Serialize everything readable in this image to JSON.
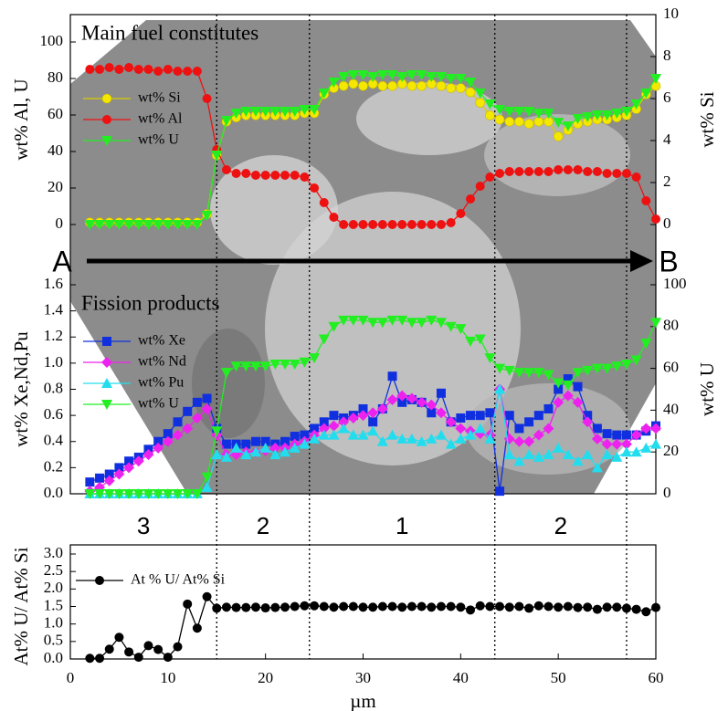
{
  "chart_data": [
    {
      "type": "line",
      "title": "Main fuel constitutes",
      "ylabel": "wt% Al, U",
      "y2label": "wt% Si",
      "x": [
        2,
        3,
        4,
        5,
        6,
        7,
        8,
        9,
        10,
        11,
        12,
        13,
        14,
        15,
        16,
        17,
        18,
        19,
        20,
        21,
        22,
        23,
        24,
        25,
        26,
        27,
        28,
        29,
        30,
        31,
        32,
        33,
        34,
        35,
        36,
        37,
        38,
        39,
        40,
        41,
        42,
        43,
        44,
        45,
        46,
        47,
        48,
        49,
        50,
        51,
        52,
        53,
        54,
        55,
        56,
        57,
        58,
        59,
        60
      ],
      "xlim": [
        0,
        60
      ],
      "ylim": [
        0,
        115
      ],
      "yticks": [
        0,
        20,
        40,
        60,
        80,
        100
      ],
      "y2lim": [
        0,
        10
      ],
      "y2ticks": [
        0,
        2,
        4,
        6,
        8,
        10
      ],
      "series": [
        {
          "name": "wt% Si",
          "color": "#f5e800",
          "marker": "circle",
          "axis": "y2",
          "values": [
            0.1,
            0.1,
            0.1,
            0.1,
            0.1,
            0.1,
            0.1,
            0.1,
            0.1,
            0.1,
            0.1,
            0.1,
            0.5,
            3.3,
            4.9,
            5.1,
            5.2,
            5.2,
            5.2,
            5.2,
            5.2,
            5.2,
            5.3,
            5.3,
            6.2,
            6.5,
            6.6,
            6.7,
            6.6,
            6.7,
            6.6,
            6.6,
            6.7,
            6.6,
            6.6,
            6.7,
            6.6,
            6.5,
            6.5,
            6.3,
            5.8,
            5.2,
            5.0,
            4.9,
            4.9,
            4.8,
            4.9,
            4.9,
            4.2,
            4.5,
            4.8,
            4.9,
            5.0,
            5.0,
            5.1,
            5.2,
            5.5,
            6.2,
            6.6
          ]
        },
        {
          "name": "wt% Al",
          "color": "#ee1111",
          "marker": "circle",
          "values": [
            85,
            85,
            86,
            85,
            86,
            85,
            85,
            84,
            85,
            84,
            84,
            84,
            69,
            41,
            30,
            28,
            28,
            27,
            27,
            27,
            27,
            27,
            26,
            20,
            12,
            4,
            0,
            0,
            0,
            0,
            0,
            0,
            0,
            0,
            0,
            0,
            0,
            1,
            6,
            14,
            21,
            26,
            28,
            29,
            29,
            29,
            29,
            29,
            30,
            30,
            30,
            29,
            29,
            28,
            28,
            28,
            26,
            13,
            3
          ]
        },
        {
          "name": "wt% U",
          "color": "#22ee22",
          "marker": "tri-down",
          "values": [
            0,
            0,
            0,
            0,
            0,
            0,
            0,
            0,
            0,
            0,
            0,
            0,
            5,
            38,
            57,
            61,
            62,
            62,
            62,
            62,
            62,
            62,
            63,
            63,
            72,
            78,
            81,
            82,
            82,
            81,
            82,
            82,
            81,
            82,
            82,
            81,
            81,
            80,
            80,
            78,
            72,
            66,
            63,
            62,
            62,
            62,
            61,
            61,
            56,
            54,
            58,
            59,
            60,
            60,
            61,
            62,
            66,
            72,
            80
          ]
        }
      ]
    },
    {
      "type": "line",
      "title": "Fission products",
      "ylabel": "wt% Xe,Nd,Pu",
      "y2label": "wt% U",
      "x": [
        2,
        3,
        4,
        5,
        6,
        7,
        8,
        9,
        10,
        11,
        12,
        13,
        14,
        15,
        16,
        17,
        18,
        19,
        20,
        21,
        22,
        23,
        24,
        25,
        26,
        27,
        28,
        29,
        30,
        31,
        32,
        33,
        34,
        35,
        36,
        37,
        38,
        39,
        40,
        41,
        42,
        43,
        44,
        45,
        46,
        47,
        48,
        49,
        50,
        51,
        52,
        53,
        54,
        55,
        56,
        57,
        58,
        59,
        60
      ],
      "xlim": [
        0,
        60
      ],
      "ylim": [
        0,
        1.6
      ],
      "yticks": [
        {
          "value": 0,
          "label": "0.0"
        },
        {
          "value": 0.2,
          "label": "0.2"
        },
        {
          "value": 0.4,
          "label": "0.4"
        },
        {
          "value": 0.6,
          "label": "0.6"
        },
        {
          "value": 0.8,
          "label": "0.8"
        },
        {
          "value": 1,
          "label": "1.0"
        },
        {
          "value": 1.2,
          "label": "1.2"
        },
        {
          "value": 1.4,
          "label": "1.4"
        },
        {
          "value": 1.6,
          "label": "1.6"
        }
      ],
      "y2lim": [
        0,
        100
      ],
      "y2ticks": [
        0,
        20,
        40,
        60,
        80,
        100
      ],
      "series": [
        {
          "name": "wt% Xe",
          "color": "#1030e0",
          "marker": "square",
          "values": [
            0.09,
            0.12,
            0.15,
            0.2,
            0.25,
            0.28,
            0.34,
            0.4,
            0.46,
            0.55,
            0.63,
            0.7,
            0.73,
            0.5,
            0.38,
            0.38,
            0.38,
            0.4,
            0.4,
            0.38,
            0.4,
            0.44,
            0.45,
            0.5,
            0.55,
            0.6,
            0.58,
            0.6,
            0.65,
            0.55,
            0.65,
            0.9,
            0.7,
            0.72,
            0.7,
            0.62,
            0.77,
            0.55,
            0.58,
            0.6,
            0.6,
            0.62,
            0.02,
            0.6,
            0.5,
            0.55,
            0.6,
            0.65,
            0.8,
            0.88,
            0.82,
            0.6,
            0.5,
            0.46,
            0.45,
            0.45,
            0.45,
            0.48,
            0.52
          ]
        },
        {
          "name": "wt% Nd",
          "color": "#ee22ee",
          "marker": "diamond",
          "values": [
            0.02,
            0.05,
            0.1,
            0.15,
            0.2,
            0.25,
            0.3,
            0.35,
            0.4,
            0.45,
            0.5,
            0.58,
            0.65,
            0.45,
            0.3,
            0.3,
            0.32,
            0.32,
            0.33,
            0.35,
            0.35,
            0.38,
            0.4,
            0.45,
            0.5,
            0.52,
            0.55,
            0.58,
            0.6,
            0.62,
            0.65,
            0.72,
            0.75,
            0.73,
            0.7,
            0.68,
            0.62,
            0.55,
            0.5,
            0.48,
            0.46,
            0.45,
            0.8,
            0.42,
            0.4,
            0.4,
            0.45,
            0.5,
            0.7,
            0.75,
            0.7,
            0.55,
            0.42,
            0.38,
            0.38,
            0.38,
            0.45,
            0.5,
            0.5
          ]
        },
        {
          "name": "wt% Pu",
          "color": "#22ddee",
          "marker": "tri-up",
          "values": [
            0,
            0,
            0,
            0,
            0,
            0,
            0,
            0,
            0,
            0,
            0,
            0,
            0.05,
            0.3,
            0.28,
            0.35,
            0.3,
            0.32,
            0.35,
            0.3,
            0.32,
            0.35,
            0.38,
            0.42,
            0.45,
            0.45,
            0.5,
            0.45,
            0.45,
            0.48,
            0.4,
            0.45,
            0.42,
            0.42,
            0.4,
            0.42,
            0.45,
            0.38,
            0.42,
            0.45,
            0.5,
            0.42,
            0.8,
            0.3,
            0.25,
            0.3,
            0.28,
            0.3,
            0.35,
            0.3,
            0.25,
            0.3,
            0.2,
            0.3,
            0.28,
            0.32,
            0.32,
            0.35,
            0.38
          ]
        },
        {
          "name": "wt% U",
          "color": "#22ee22",
          "marker": "tri-down",
          "axis": "y2",
          "values": [
            0,
            0,
            0,
            0,
            0,
            0,
            0,
            0,
            0,
            0,
            0,
            0,
            8,
            30,
            58,
            61,
            61,
            61,
            61,
            62,
            62,
            62,
            63,
            65,
            74,
            80,
            83,
            83,
            83,
            82,
            82,
            83,
            83,
            82,
            82,
            83,
            82,
            80,
            79,
            73,
            74,
            65,
            60,
            59,
            58,
            58,
            58,
            57,
            53,
            52,
            58,
            59,
            60,
            60,
            61,
            62,
            64,
            72,
            82
          ]
        }
      ]
    },
    {
      "type": "line",
      "ylabel": "At% U/ At% Si",
      "xlabel": "µm",
      "x": [
        2,
        3,
        4,
        5,
        6,
        7,
        8,
        9,
        10,
        11,
        12,
        13,
        14,
        15,
        16,
        17,
        18,
        19,
        20,
        21,
        22,
        23,
        24,
        25,
        26,
        27,
        28,
        29,
        30,
        31,
        32,
        33,
        34,
        35,
        36,
        37,
        38,
        39,
        40,
        41,
        42,
        43,
        44,
        45,
        46,
        47,
        48,
        49,
        50,
        51,
        52,
        53,
        54,
        55,
        56,
        57,
        58,
        59,
        60
      ],
      "xlim": [
        0,
        60
      ],
      "xticks": [
        0,
        10,
        20,
        30,
        40,
        50,
        60
      ],
      "ylim": [
        0,
        3
      ],
      "yticks": [
        {
          "value": 0,
          "label": "0.0"
        },
        {
          "value": 0.5,
          "label": "0.5"
        },
        {
          "value": 1,
          "label": "1.0"
        },
        {
          "value": 1.5,
          "label": "1.5"
        },
        {
          "value": 2,
          "label": "2.0"
        },
        {
          "value": 2.5,
          "label": "2.5"
        },
        {
          "value": 3,
          "label": "3.0"
        }
      ],
      "series": [
        {
          "name": "At % U/ At% Si",
          "color": "#000000",
          "marker": "circle",
          "values": [
            0.02,
            0.02,
            0.28,
            0.62,
            0.2,
            0.05,
            0.38,
            0.27,
            0.05,
            0.35,
            1.57,
            0.88,
            1.78,
            1.45,
            1.48,
            1.47,
            1.47,
            1.48,
            1.46,
            1.47,
            1.48,
            1.5,
            1.52,
            1.52,
            1.5,
            1.48,
            1.5,
            1.5,
            1.48,
            1.48,
            1.5,
            1.5,
            1.48,
            1.5,
            1.5,
            1.48,
            1.5,
            1.5,
            1.48,
            1.4,
            1.52,
            1.5,
            1.5,
            1.48,
            1.5,
            1.45,
            1.52,
            1.5,
            1.48,
            1.5,
            1.47,
            1.48,
            1.42,
            1.48,
            1.48,
            1.45,
            1.42,
            1.35,
            1.47
          ]
        }
      ]
    }
  ],
  "zones": {
    "boundaries": [
      15,
      24.5,
      43.5,
      57
    ],
    "labels": [
      "3",
      "2",
      "1",
      "2"
    ]
  },
  "arrow": {
    "start": "A",
    "end": "B"
  }
}
